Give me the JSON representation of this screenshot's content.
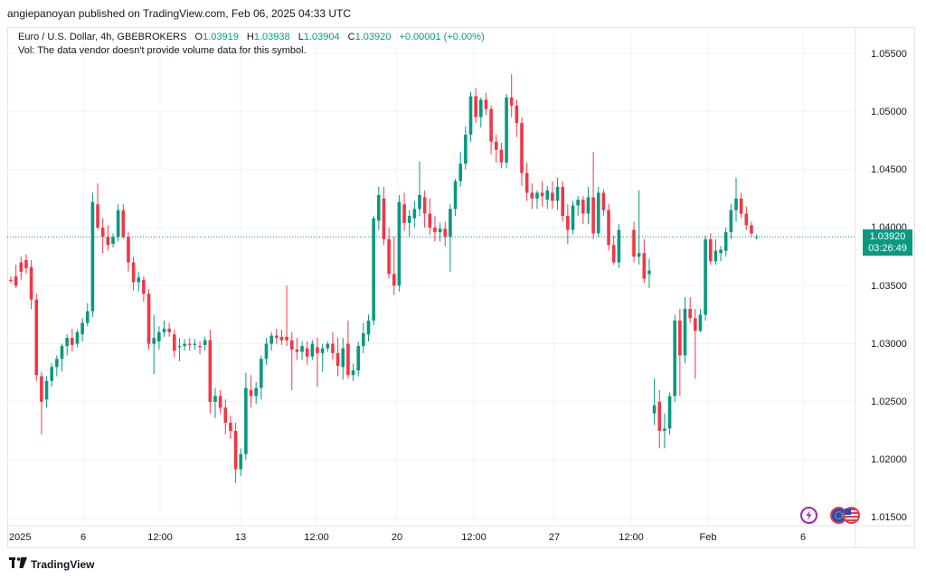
{
  "header": {
    "publisher_line": "angiepanoyan published on TradingView.com, Feb 06, 2025 04:33 UTC"
  },
  "legend": {
    "symbol": "Euro / U.S. Dollar, 4h, GBEBROKERS",
    "open_label": "O",
    "open": "1.03919",
    "high_label": "H",
    "high": "1.03938",
    "low_label": "L",
    "low": "1.03904",
    "close_label": "C",
    "close": "1.03920",
    "change": "+0.00001 (+0.00%)",
    "vol_note": "Vol: The data vendor doesn't provide volume data for this symbol."
  },
  "price_tag": {
    "price": "1.03920",
    "countdown": "03:26:49"
  },
  "footer": {
    "brand": "TradingView"
  },
  "icons": [
    "trading-view-logo-icon",
    "lightning-icon",
    "flag-eu-icon",
    "flag-us-icon"
  ],
  "colors": {
    "up": "#089981",
    "down": "#f23645",
    "grid": "#f0f3fa",
    "text": "#131722"
  },
  "chart_data": {
    "type": "candlestick",
    "timeframe": "4h",
    "ylim": [
      1.0145,
      1.057
    ],
    "y_ticks": [
      "1.05500",
      "1.05000",
      "1.04500",
      "1.04000",
      "1.03500",
      "1.03000",
      "1.02500",
      "1.02000",
      "1.01500"
    ],
    "x_ticks": [
      "2025",
      "6",
      "12:00",
      "13",
      "12:00",
      "20",
      "12:00",
      "27",
      "12:00",
      "Feb",
      "6"
    ],
    "last_price": 1.0392,
    "candles": [
      [
        1.0355,
        1.0358,
        1.0352,
        1.0354
      ],
      [
        1.0358,
        1.0368,
        1.0348,
        1.035
      ],
      [
        1.037,
        1.0375,
        1.0355,
        1.0362
      ],
      [
        1.0372,
        1.0377,
        1.036,
        1.0365
      ],
      [
        1.0366,
        1.0372,
        1.033,
        1.0338
      ],
      [
        1.0338,
        1.0343,
        1.0268,
        1.0273
      ],
      [
        1.0272,
        1.0276,
        1.0222,
        1.025
      ],
      [
        1.0252,
        1.0272,
        1.0245,
        1.0268
      ],
      [
        1.0268,
        1.0283,
        1.0263,
        1.028
      ],
      [
        1.028,
        1.029,
        1.0272,
        1.0287
      ],
      [
        1.0287,
        1.03,
        1.0276,
        1.0298
      ],
      [
        1.0298,
        1.0308,
        1.029,
        1.0305
      ],
      [
        1.0305,
        1.0313,
        1.0293,
        1.0299
      ],
      [
        1.03,
        1.0312,
        1.0297,
        1.031
      ],
      [
        1.0308,
        1.0322,
        1.0302,
        1.0318
      ],
      [
        1.0318,
        1.0335,
        1.0315,
        1.0328
      ],
      [
        1.0328,
        1.043,
        1.0323,
        1.0422
      ],
      [
        1.042,
        1.0438,
        1.0398,
        1.04
      ],
      [
        1.04,
        1.0408,
        1.0378,
        1.0392
      ],
      [
        1.0392,
        1.0402,
        1.038,
        1.0385
      ],
      [
        1.0386,
        1.0395,
        1.0383,
        1.0392
      ],
      [
        1.0392,
        1.042,
        1.0388,
        1.0415
      ],
      [
        1.0415,
        1.042,
        1.039,
        1.0392
      ],
      [
        1.0392,
        1.0396,
        1.0362,
        1.037
      ],
      [
        1.037,
        1.0375,
        1.0346,
        1.0353
      ],
      [
        1.0353,
        1.0362,
        1.0345,
        1.0357
      ],
      [
        1.0355,
        1.0358,
        1.0336,
        1.0343
      ],
      [
        1.0343,
        1.0347,
        1.0295,
        1.03
      ],
      [
        1.03,
        1.0325,
        1.0274,
        1.0305
      ],
      [
        1.0302,
        1.0315,
        1.0295,
        1.031
      ],
      [
        1.031,
        1.032,
        1.0306,
        1.0313
      ],
      [
        1.0313,
        1.0318,
        1.0306,
        1.031
      ],
      [
        1.0308,
        1.0312,
        1.0288,
        1.0294
      ],
      [
        1.0297,
        1.0305,
        1.0285,
        1.0298
      ],
      [
        1.0298,
        1.0304,
        1.0294,
        1.03
      ],
      [
        1.03,
        1.0305,
        1.0294,
        1.0299
      ],
      [
        1.0299,
        1.0304,
        1.0295,
        1.03
      ],
      [
        1.0298,
        1.0302,
        1.0291,
        1.0297
      ],
      [
        1.0299,
        1.0306,
        1.0294,
        1.0303
      ],
      [
        1.0303,
        1.0312,
        1.024,
        1.025
      ],
      [
        1.025,
        1.0262,
        1.0236,
        1.0255
      ],
      [
        1.0255,
        1.026,
        1.024,
        1.0245
      ],
      [
        1.0245,
        1.0252,
        1.0222,
        1.0232
      ],
      [
        1.0232,
        1.0238,
        1.0218,
        1.0225
      ],
      [
        1.0225,
        1.0232,
        1.018,
        1.0192
      ],
      [
        1.0192,
        1.021,
        1.0186,
        1.0205
      ],
      [
        1.0205,
        1.0275,
        1.02,
        1.0262
      ],
      [
        1.026,
        1.0273,
        1.0245,
        1.0255
      ],
      [
        1.0255,
        1.0267,
        1.0248,
        1.0262
      ],
      [
        1.0262,
        1.029,
        1.0252,
        1.0287
      ],
      [
        1.0287,
        1.0305,
        1.0282,
        1.03
      ],
      [
        1.03,
        1.031,
        1.0294,
        1.0307
      ],
      [
        1.0307,
        1.0313,
        1.03,
        1.0305
      ],
      [
        1.0306,
        1.0312,
        1.0299,
        1.0303
      ],
      [
        1.0306,
        1.035,
        1.0298,
        1.0303
      ],
      [
        1.0303,
        1.031,
        1.026,
        1.0295
      ],
      [
        1.0295,
        1.0305,
        1.0286,
        1.0293
      ],
      [
        1.0293,
        1.0302,
        1.0286,
        1.0298
      ],
      [
        1.0296,
        1.0302,
        1.0282,
        1.0289
      ],
      [
        1.0289,
        1.0303,
        1.0286,
        1.03
      ],
      [
        1.0297,
        1.0305,
        1.0263,
        1.0292
      ],
      [
        1.0292,
        1.03,
        1.0276,
        1.0296
      ],
      [
        1.0296,
        1.0302,
        1.0293,
        1.03
      ],
      [
        1.03,
        1.031,
        1.0286,
        1.0292
      ],
      [
        1.0292,
        1.0305,
        1.0272,
        1.0281
      ],
      [
        1.028,
        1.0305,
        1.0269,
        1.0296
      ],
      [
        1.03,
        1.032,
        1.027,
        1.0273
      ],
      [
        1.0273,
        1.0283,
        1.0268,
        1.0277
      ],
      [
        1.0277,
        1.0302,
        1.0272,
        1.0298
      ],
      [
        1.0298,
        1.0318,
        1.0292,
        1.0309
      ],
      [
        1.0308,
        1.0325,
        1.0302,
        1.032
      ],
      [
        1.032,
        1.041,
        1.0316,
        1.0408
      ],
      [
        1.0406,
        1.0435,
        1.0398,
        1.0428
      ],
      [
        1.0425,
        1.0435,
        1.0385,
        1.039
      ],
      [
        1.039,
        1.04,
        1.0356,
        1.036
      ],
      [
        1.036,
        1.0392,
        1.0342,
        1.035
      ],
      [
        1.035,
        1.0428,
        1.0345,
        1.0422
      ],
      [
        1.042,
        1.043,
        1.0397,
        1.0404
      ],
      [
        1.0404,
        1.0415,
        1.0392,
        1.041
      ],
      [
        1.0408,
        1.0423,
        1.04,
        1.0416
      ],
      [
        1.0416,
        1.0457,
        1.041,
        1.0428
      ],
      [
        1.0426,
        1.0432,
        1.04,
        1.0412
      ],
      [
        1.0412,
        1.0425,
        1.0394,
        1.04
      ],
      [
        1.04,
        1.041,
        1.0388,
        1.0396
      ],
      [
        1.0396,
        1.0404,
        1.0388,
        1.0399
      ],
      [
        1.0399,
        1.0405,
        1.0384,
        1.0392
      ],
      [
        1.0392,
        1.042,
        1.0362,
        1.0416
      ],
      [
        1.0416,
        1.0442,
        1.041,
        1.044
      ],
      [
        1.044,
        1.0465,
        1.0435,
        1.0455
      ],
      [
        1.0455,
        1.0487,
        1.045,
        1.048
      ],
      [
        1.048,
        1.0517,
        1.0474,
        1.0513
      ],
      [
        1.0513,
        1.052,
        1.049,
        1.0495
      ],
      [
        1.0495,
        1.0512,
        1.0486,
        1.051
      ],
      [
        1.051,
        1.0516,
        1.0497,
        1.0502
      ],
      [
        1.0502,
        1.0505,
        1.0463,
        1.0474
      ],
      [
        1.0474,
        1.048,
        1.0456,
        1.0467
      ],
      [
        1.0467,
        1.0473,
        1.0451,
        1.0456
      ],
      [
        1.0456,
        1.0515,
        1.0451,
        1.0512
      ],
      [
        1.0512,
        1.0532,
        1.0495,
        1.0505
      ],
      [
        1.0505,
        1.051,
        1.0478,
        1.049
      ],
      [
        1.049,
        1.0495,
        1.0436,
        1.0447
      ],
      [
        1.0447,
        1.0456,
        1.0423,
        1.043
      ],
      [
        1.043,
        1.0438,
        1.0416,
        1.0425
      ],
      [
        1.0425,
        1.0432,
        1.0416,
        1.043
      ],
      [
        1.043,
        1.044,
        1.0418,
        1.0427
      ],
      [
        1.0424,
        1.0436,
        1.0416,
        1.0432
      ],
      [
        1.043,
        1.044,
        1.0416,
        1.0423
      ],
      [
        1.0423,
        1.0443,
        1.0415,
        1.0435
      ],
      [
        1.0435,
        1.044,
        1.0405,
        1.041
      ],
      [
        1.041,
        1.042,
        1.0386,
        1.0398
      ],
      [
        1.0398,
        1.0423,
        1.0394,
        1.0419
      ],
      [
        1.0419,
        1.0427,
        1.041,
        1.0424
      ],
      [
        1.0424,
        1.0427,
        1.0403,
        1.0412
      ],
      [
        1.0412,
        1.0435,
        1.0403,
        1.0426
      ],
      [
        1.0426,
        1.0465,
        1.039,
        1.0395
      ],
      [
        1.0395,
        1.0435,
        1.0392,
        1.043
      ],
      [
        1.043,
        1.0433,
        1.041,
        1.0415
      ],
      [
        1.0415,
        1.042,
        1.038,
        1.0385
      ],
      [
        1.0385,
        1.0393,
        1.0368,
        1.037
      ],
      [
        1.037,
        1.0403,
        1.0365,
        1.0398
      ],
      [
        1.0398,
        1.0405,
        1.037,
        1.0375
      ],
      [
        1.0375,
        1.0432,
        1.0368,
        1.0378
      ],
      [
        1.0378,
        1.039,
        1.0352,
        1.0356
      ],
      [
        1.036,
        1.0373,
        1.0348,
        1.0363
      ],
      [
        1.024,
        1.027,
        1.023,
        1.0247
      ],
      [
        1.025,
        1.026,
        1.021,
        1.0225
      ],
      [
        1.0225,
        1.024,
        1.021,
        1.0227
      ],
      [
        1.0227,
        1.0258,
        1.0222,
        1.0255
      ],
      [
        1.0255,
        1.0325,
        1.025,
        1.032
      ],
      [
        1.032,
        1.033,
        1.0255,
        1.029
      ],
      [
        1.029,
        1.034,
        1.0283,
        1.033
      ],
      [
        1.033,
        1.034,
        1.0318,
        1.0322
      ],
      [
        1.0322,
        1.033,
        1.027,
        1.0311
      ],
      [
        1.0311,
        1.033,
        1.031,
        1.0325
      ],
      [
        1.0325,
        1.0393,
        1.032,
        1.039
      ],
      [
        1.039,
        1.0395,
        1.0368,
        1.0371
      ],
      [
        1.0371,
        1.039,
        1.0368,
        1.038
      ],
      [
        1.0378,
        1.0384,
        1.0371,
        1.0381
      ],
      [
        1.038,
        1.04,
        1.0375,
        1.0396
      ],
      [
        1.0396,
        1.042,
        1.039,
        1.0415
      ],
      [
        1.0415,
        1.0443,
        1.0405,
        1.0425
      ],
      [
        1.0425,
        1.043,
        1.0408,
        1.0412
      ],
      [
        1.0412,
        1.0418,
        1.0398,
        1.0402
      ],
      [
        1.0402,
        1.0405,
        1.0392,
        1.0395
      ],
      [
        1.0392,
        1.0394,
        1.039,
        1.0392
      ]
    ]
  }
}
